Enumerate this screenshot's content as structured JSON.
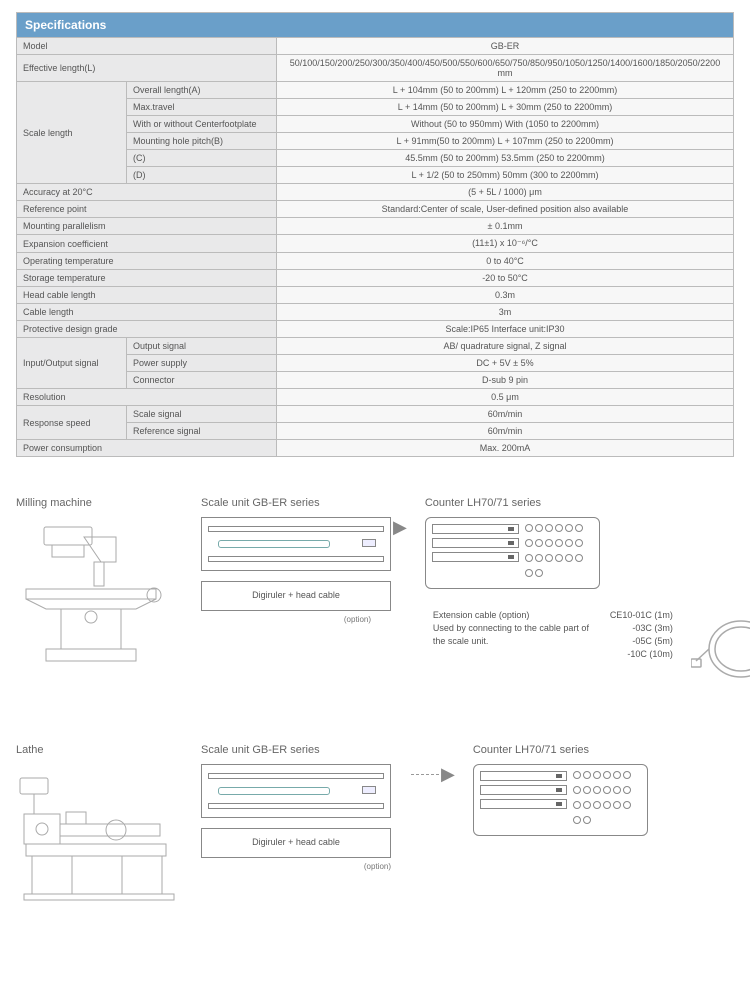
{
  "header": "Specifications",
  "rows": [
    {
      "type": "simple",
      "label": "Model",
      "value": "GB-ER"
    },
    {
      "type": "simple",
      "label": "Effective length(L)",
      "value": "50/100/150/200/250/300/350/400/450/500/550/600/650/750/850/950/1050/1250/1400/1600/1850/2050/2200 mm"
    },
    {
      "type": "group",
      "label": "Scale length",
      "subs": [
        {
          "sub": "Overall length(A)",
          "value": "L + 104mm (50 to 200mm)   L + 120mm (250 to 2200mm)"
        },
        {
          "sub": "Max.travel",
          "value": "L + 14mm (50 to 200mm)   L + 30mm (250 to 2200mm)"
        },
        {
          "sub": "With or without Centerfootplate",
          "value": "Without (50 to 950mm)  With (1050 to 2200mm)"
        },
        {
          "sub": "Mounting hole pitch(B)",
          "value": "L + 91mm(50 to 200mm)   L + 107mm (250 to 2200mm)"
        },
        {
          "sub": "(C)",
          "value": "45.5mm (50 to 200mm)  53.5mm (250 to 2200mm)"
        },
        {
          "sub": "(D)",
          "value": "L + 1/2 (50 to 250mm)   50mm (300 to 2200mm)"
        }
      ]
    },
    {
      "type": "simple",
      "label": "Accuracy at 20°C",
      "value": "(5 + 5L / 1000) μm"
    },
    {
      "type": "simple",
      "label": "Reference point",
      "value": "Standard:Center of scale, User-defined position also available"
    },
    {
      "type": "simple",
      "label": "Mounting parallelism",
      "value": "± 0.1mm"
    },
    {
      "type": "simple",
      "label": "Expansion coefficient",
      "value": "(11±1) x 10⁻⁶/°C"
    },
    {
      "type": "simple",
      "label": "Operating temperature",
      "value": "0 to 40°C"
    },
    {
      "type": "simple",
      "label": "Storage temperature",
      "value": "-20 to 50°C"
    },
    {
      "type": "simple",
      "label": "Head cable length",
      "value": "0.3m"
    },
    {
      "type": "simple",
      "label": "Cable length",
      "value": "3m"
    },
    {
      "type": "simple",
      "label": "Protective design grade",
      "value": "Scale:IP65 Interface unit:IP30"
    },
    {
      "type": "group",
      "label": "Input/Output signal",
      "subs": [
        {
          "sub": "Output signal",
          "value": "AB/ quadrature signal, Z signal"
        },
        {
          "sub": "Power supply",
          "value": "DC + 5V ± 5%"
        },
        {
          "sub": "Connector",
          "value": "D-sub 9 pin"
        }
      ]
    },
    {
      "type": "simple",
      "label": "Resolution",
      "value": "0.5 μm"
    },
    {
      "type": "group",
      "label": "Response speed",
      "subs": [
        {
          "sub": "Scale signal",
          "value": "60m/min"
        },
        {
          "sub": "Reference signal",
          "value": "60m/min"
        }
      ]
    },
    {
      "type": "simple",
      "label": "Power consumption",
      "value": "Max. 200mA"
    }
  ],
  "diagrams": {
    "milling_label": "Milling machine",
    "lathe_label": "Lathe",
    "scale_label": "Scale unit GB-ER series",
    "counter_label": "Counter LH70/71 series",
    "digiruler_text": "Digiruler  + head cable",
    "option_text": "(option)",
    "ext": {
      "line1": "Extension cable (option)",
      "line2": "Used by connecting to the cable part of the scale unit.",
      "codes": [
        "CE10-01C (1m)",
        "-03C (3m)",
        "-05C (5m)",
        "-10C (10m)"
      ]
    }
  },
  "colors": {
    "header_bg": "#6a9fc9",
    "label_bg": "#e9e9ea",
    "val_bg": "#f7f7f7",
    "border": "#bbb",
    "text": "#555"
  }
}
